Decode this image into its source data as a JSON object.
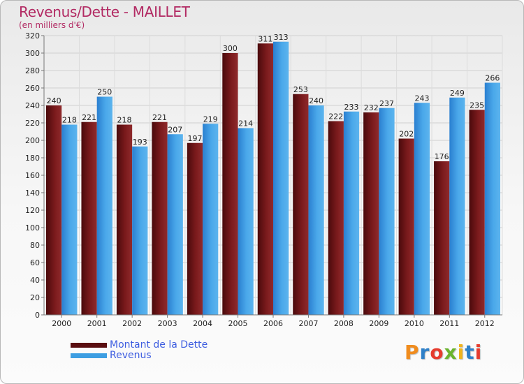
{
  "title": "Revenus/Dette - MAILLET",
  "subtitle": "(en milliers d'€)",
  "chart_data": {
    "type": "bar",
    "title": "Revenus/Dette - MAILLET",
    "subtitle": "(en milliers d'€)",
    "categories": [
      "2000",
      "2001",
      "2002",
      "2003",
      "2004",
      "2005",
      "2006",
      "2007",
      "2008",
      "2009",
      "2010",
      "2011",
      "2012"
    ],
    "series": [
      {
        "name": "Montant de la Dette",
        "color": "#7a1a1c",
        "values": [
          240,
          221,
          218,
          221,
          197,
          300,
          311,
          253,
          222,
          232,
          202,
          176,
          235
        ]
      },
      {
        "name": "Revenus",
        "color": "#3d9ee2",
        "values": [
          218,
          250,
          193,
          207,
          219,
          214,
          313,
          240,
          233,
          237,
          243,
          249,
          266
        ]
      }
    ],
    "ylim": [
      0,
      320
    ],
    "yticks": [
      0,
      20,
      40,
      60,
      80,
      100,
      120,
      140,
      160,
      180,
      200,
      220,
      240,
      260,
      280,
      300,
      320
    ],
    "grid": true,
    "legend": "bottom-left"
  },
  "legend": {
    "items": [
      {
        "label": "Montant de la Dette",
        "color": "#7a1a1c"
      },
      {
        "label": "Revenus",
        "color": "#3d9ee2"
      }
    ]
  },
  "logo": {
    "text": "Proxiti",
    "letters": [
      {
        "char": "P",
        "color": "#f08c1e"
      },
      {
        "char": "r",
        "color": "#2f80c8"
      },
      {
        "char": "o",
        "color": "#e63c2e"
      },
      {
        "char": "x",
        "color": "#6ab42e"
      },
      {
        "char": "i",
        "color": "#f0b41e"
      },
      {
        "char": "t",
        "color": "#2f80c8"
      },
      {
        "char": "i",
        "color": "#e63c2e"
      }
    ]
  }
}
